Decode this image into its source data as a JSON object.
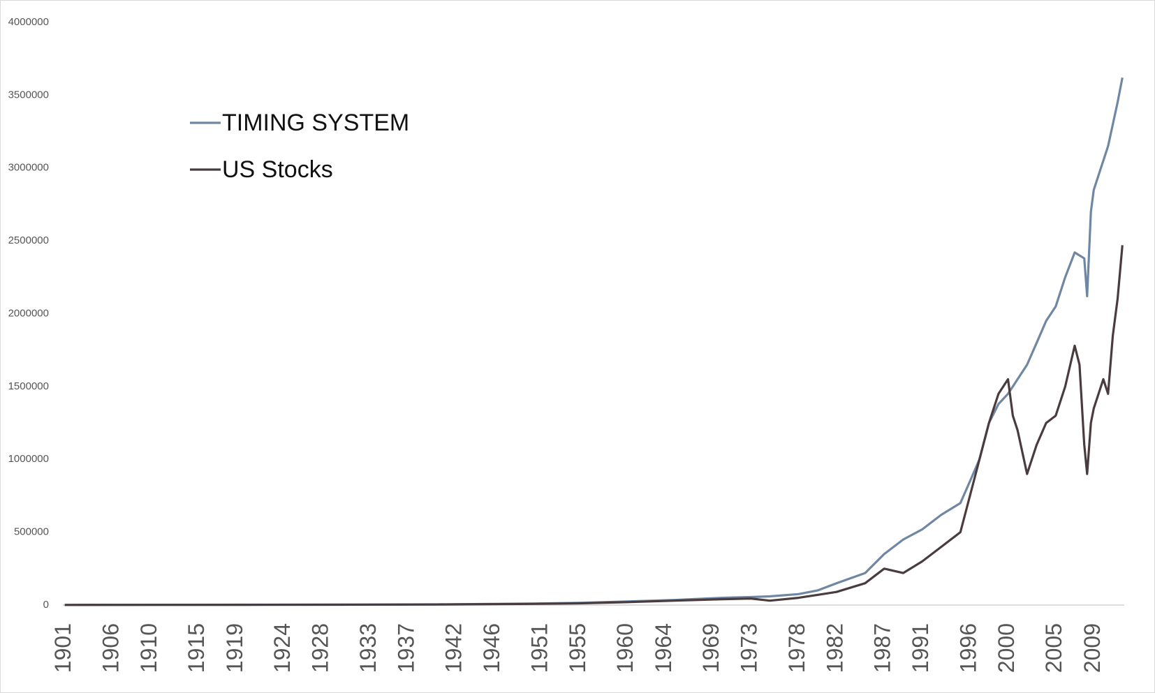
{
  "chart_data": {
    "type": "line",
    "x": [
      1901,
      1910,
      1920,
      1930,
      1940,
      1950,
      1955,
      1960,
      1965,
      1970,
      1973,
      1975,
      1978,
      1980,
      1982,
      1985,
      1987,
      1989,
      1991,
      1993,
      1995,
      1996,
      1997,
      1998,
      1999,
      2000,
      2000.5,
      2001,
      2002,
      2003,
      2004,
      2005,
      2006,
      2007,
      2007.5,
      2008,
      2008.3,
      2008.7,
      2009,
      2010,
      2010.5,
      2011,
      2011.5,
      2012
    ],
    "series": [
      {
        "name": "TIMING SYSTEM",
        "color": "#6f87a3",
        "values": [
          1000,
          1500,
          2500,
          3000,
          5000,
          10000,
          15000,
          25000,
          35000,
          50000,
          55000,
          60000,
          75000,
          100000,
          150000,
          220000,
          350000,
          450000,
          520000,
          620000,
          700000,
          850000,
          1000000,
          1250000,
          1380000,
          1450000,
          1500000,
          1550000,
          1650000,
          1800000,
          1950000,
          2050000,
          2250000,
          2420000,
          2400000,
          2380000,
          2120000,
          2700000,
          2850000,
          3050000,
          3150000,
          3300000,
          3450000,
          3620000
        ]
      },
      {
        "name": "US Stocks",
        "color": "#4a3c3e",
        "values": [
          1000,
          1400,
          2000,
          2500,
          4000,
          8000,
          12000,
          20000,
          30000,
          40000,
          45000,
          30000,
          50000,
          70000,
          90000,
          150000,
          250000,
          220000,
          300000,
          400000,
          500000,
          750000,
          1000000,
          1250000,
          1450000,
          1550000,
          1300000,
          1200000,
          900000,
          1100000,
          1250000,
          1300000,
          1500000,
          1780000,
          1650000,
          1100000,
          900000,
          1250000,
          1350000,
          1550000,
          1450000,
          1850000,
          2100000,
          2470000
        ]
      }
    ],
    "xlim": [
      1900.8,
      2012.2
    ],
    "xticks": [
      1901,
      1906,
      1910,
      1915,
      1919,
      1924,
      1928,
      1933,
      1937,
      1942,
      1946,
      1951,
      1955,
      1960,
      1964,
      1969,
      1973,
      1978,
      1982,
      1987,
      1991,
      1996,
      2000,
      2005,
      2009
    ],
    "ylim": [
      0,
      4000000
    ],
    "yticks": [
      0,
      500000,
      1000000,
      1500000,
      2000000,
      2500000,
      3000000,
      3500000,
      4000000
    ],
    "legend": "upper-left",
    "grid": false
  }
}
